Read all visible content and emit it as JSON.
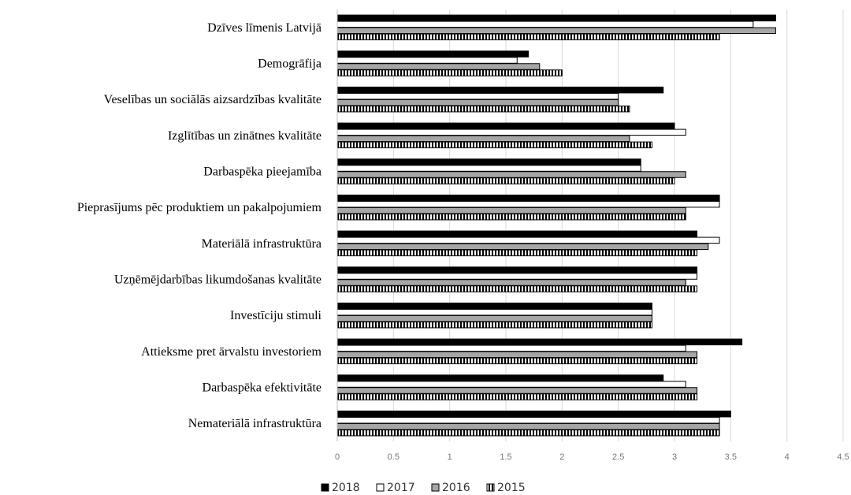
{
  "chart_data": {
    "type": "bar",
    "orientation": "horizontal",
    "categories": [
      "Dzīves līmenis Latvijā",
      "Demogrāfija",
      "Veselības un sociālās aizsardzības kvalitāte",
      "Izglītības un zinātnes kvalitāte",
      "Darbaspēka pieejamība",
      "Pieprasījums pēc produktiem un pakalpojumiem",
      "Materiālā infrastruktūra",
      "Uzņēmējdarbības likumdošanas kvalitāte",
      "Investīciju stimuli",
      "Attieksme pret ārvalstu investoriem",
      "Darbaspēka efektivitāte",
      "Nemateriālā infrastruktūra"
    ],
    "series": [
      {
        "name": "2018",
        "pattern": "solid-black",
        "values": [
          3.9,
          1.7,
          2.9,
          3.0,
          2.7,
          3.4,
          3.2,
          3.2,
          2.8,
          3.6,
          2.9,
          3.5
        ]
      },
      {
        "name": "2017",
        "pattern": "white",
        "values": [
          3.7,
          1.6,
          2.5,
          3.1,
          2.7,
          3.4,
          3.4,
          3.2,
          2.8,
          3.1,
          3.1,
          3.4
        ]
      },
      {
        "name": "2016",
        "pattern": "gray",
        "values": [
          3.9,
          1.8,
          2.5,
          2.6,
          3.1,
          3.1,
          3.3,
          3.1,
          2.8,
          3.2,
          3.2,
          3.4
        ]
      },
      {
        "name": "2015",
        "pattern": "vertical-stripes",
        "values": [
          3.4,
          2.0,
          2.6,
          2.8,
          3.0,
          3.1,
          3.2,
          3.2,
          2.8,
          3.2,
          3.2,
          3.4
        ]
      }
    ],
    "xlim": [
      0,
      4.5
    ],
    "xticks": [
      "0",
      "0.5",
      "1",
      "1.5",
      "2",
      "2.5",
      "3",
      "3.5",
      "4",
      "4.5"
    ],
    "grid": true,
    "legend_position": "bottom"
  },
  "colors": {
    "solid": "#000000",
    "gray": "#a6a6a6",
    "grid": "#d9d9d9",
    "axis": "#bfbfbf"
  }
}
